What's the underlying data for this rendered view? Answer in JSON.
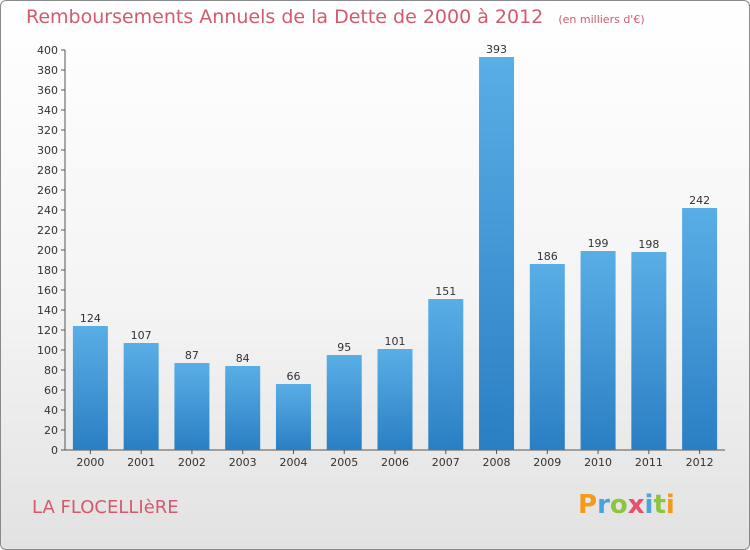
{
  "header": {
    "title": "Remboursements Annuels de la Dette de 2000 à 2012",
    "unit": "(en milliers d'€)"
  },
  "footer": {
    "town": "LA FLOCELLIèRE",
    "logo_text": "Proxiti",
    "logo_colors": [
      "#f39a1d",
      "#4aa3df",
      "#8cc63f",
      "#e94e6b",
      "#4aa3df",
      "#8cc63f",
      "#f39a1d"
    ]
  },
  "chart_data": {
    "type": "bar",
    "title": "Remboursements Annuels de la Dette de 2000 à 2012",
    "subtitle": "(en milliers d'€)",
    "xlabel": "",
    "ylabel": "",
    "categories": [
      "2000",
      "2001",
      "2002",
      "2003",
      "2004",
      "2005",
      "2006",
      "2007",
      "2008",
      "2009",
      "2010",
      "2011",
      "2012"
    ],
    "values": [
      124,
      107,
      87,
      84,
      66,
      95,
      101,
      151,
      393,
      186,
      199,
      198,
      242
    ],
    "ylim": [
      0,
      400
    ],
    "ytick_step": 20,
    "grid": false,
    "bar_color_top": "#5aaee6",
    "bar_color_bottom": "#2a7fc4",
    "data_labels": true
  }
}
